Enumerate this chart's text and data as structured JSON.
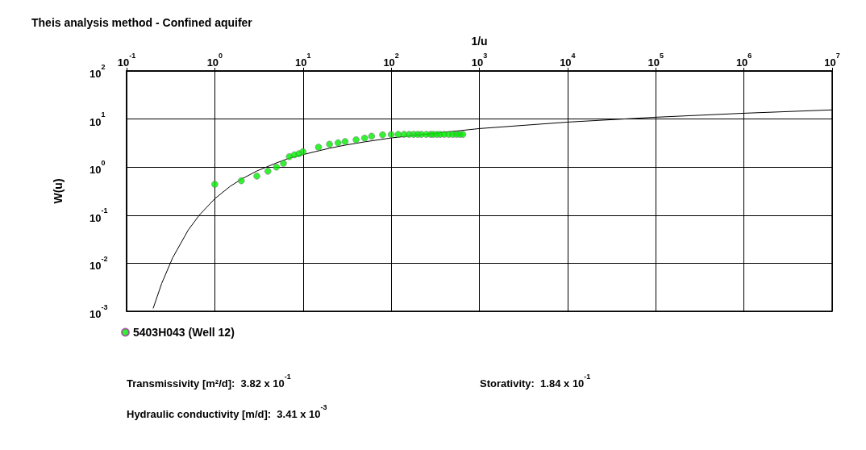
{
  "chart_data": {
    "type": "scatter",
    "title": "Theis analysis method - Confined aquifer",
    "xlabel": "1/u",
    "ylabel": "W(u)",
    "log": "xy",
    "grid": true,
    "legend": "bottom left",
    "marker": "circle",
    "xlim": [
      0.1,
      10000000
    ],
    "xticks": [
      {
        "value": 0.1,
        "label": "10$^{-1}$"
      },
      {
        "value": 1,
        "label": "10$^{0}$"
      },
      {
        "value": 10,
        "label": "10$^{1}$"
      },
      {
        "value": 100,
        "label": "10$^{2}$"
      },
      {
        "value": 1000,
        "label": "10$^{3}$"
      },
      {
        "value": 10000,
        "label": "10$^{4}$"
      },
      {
        "value": 100000,
        "label": "10$^{5}$"
      },
      {
        "value": 1000000,
        "label": "10$^{6}$"
      },
      {
        "value": 10000000,
        "label": "10$^{7}$"
      }
    ],
    "ylim": [
      0.001,
      100
    ],
    "yticks": [
      {
        "value": 0.001,
        "label": "10$^{-3}$"
      },
      {
        "value": 0.01,
        "label": "10$^{-2}$"
      },
      {
        "value": 0.1,
        "label": "10$^{-1}$"
      },
      {
        "value": 1,
        "label": "10$^{0}$"
      },
      {
        "value": 10,
        "label": "10$^{1}$"
      },
      {
        "value": 100,
        "label": "10$^{2}$"
      }
    ],
    "series": [
      {
        "name": "5403H043 (Well 12)",
        "color": "#00ee00",
        "x": [
          1,
          2,
          3,
          4,
          5,
          6,
          7,
          8,
          9,
          10,
          15,
          20,
          25,
          30,
          40,
          50,
          60,
          80,
          100,
          120,
          140,
          160,
          180,
          200,
          220,
          250,
          280,
          300,
          330,
          360,
          400,
          450,
          500,
          550,
          600,
          650
        ],
        "values": [
          0.44,
          0.52,
          0.65,
          0.82,
          1.0,
          1.2,
          1.65,
          1.8,
          1.9,
          2.1,
          2.6,
          3.0,
          3.2,
          3.4,
          3.7,
          4.0,
          4.4,
          4.7,
          4.75,
          4.8,
          4.8,
          4.8,
          4.8,
          4.8,
          4.8,
          4.8,
          4.8,
          4.8,
          4.8,
          4.8,
          4.8,
          4.8,
          4.8,
          4.8,
          4.8,
          4.8
        ]
      },
      {
        "type": "line",
        "color": "#000000",
        "marker": "none",
        "x": [
          0.2,
          0.25,
          0.333,
          0.5,
          0.667,
          1,
          1.5,
          2,
          3,
          5,
          7,
          10,
          20,
          30,
          50,
          100,
          1000,
          10000,
          100000,
          1000000,
          10000000
        ],
        "values": [
          0.00115,
          0.0038,
          0.013,
          0.049,
          0.1,
          0.22,
          0.4,
          0.56,
          0.83,
          1.22,
          1.54,
          1.82,
          2.47,
          2.86,
          3.35,
          4.04,
          6.33,
          8.63,
          10.9,
          13.2,
          15.5
        ]
      }
    ],
    "annotations": [
      "Transmissivity [m²/d]:  3.82 x 10$^{-1}$",
      "Storativity:  1.84 x 10$^{-1}$",
      "Hydraulic conductivity [m/d]:  3.41 x 10$^{-3}$"
    ]
  }
}
